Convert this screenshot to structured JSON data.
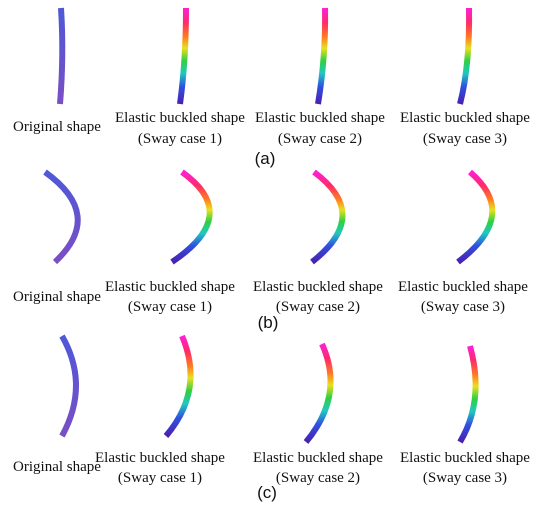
{
  "rows": [
    {
      "label": "(a)",
      "panels": [
        {
          "caption": [
            "Original shape"
          ]
        },
        {
          "caption": [
            "Elastic buckled shape",
            "(Sway case 1)"
          ]
        },
        {
          "caption": [
            "Elastic buckled shape",
            "(Sway case 2)"
          ]
        },
        {
          "caption": [
            "Elastic buckled shape",
            "(Sway case 3)"
          ]
        }
      ]
    },
    {
      "label": "(b)",
      "panels": [
        {
          "caption": [
            "Original shape"
          ]
        },
        {
          "caption": [
            "Elastic buckled shape",
            "(Sway case 1)"
          ]
        },
        {
          "caption": [
            "Elastic buckled shape",
            "(Sway case 2)"
          ]
        },
        {
          "caption": [
            "Elastic buckled shape",
            "(Sway case 3)"
          ]
        }
      ]
    },
    {
      "label": "(c)",
      "panels": [
        {
          "caption": [
            "Original shape"
          ]
        },
        {
          "caption": [
            "Elastic buckled shape",
            "(Sway case 1)"
          ]
        },
        {
          "caption": [
            "Elastic buckled shape",
            "(Sway case 2)"
          ]
        },
        {
          "caption": [
            "Elastic buckled shape",
            "(Sway case 3)"
          ]
        }
      ]
    }
  ]
}
